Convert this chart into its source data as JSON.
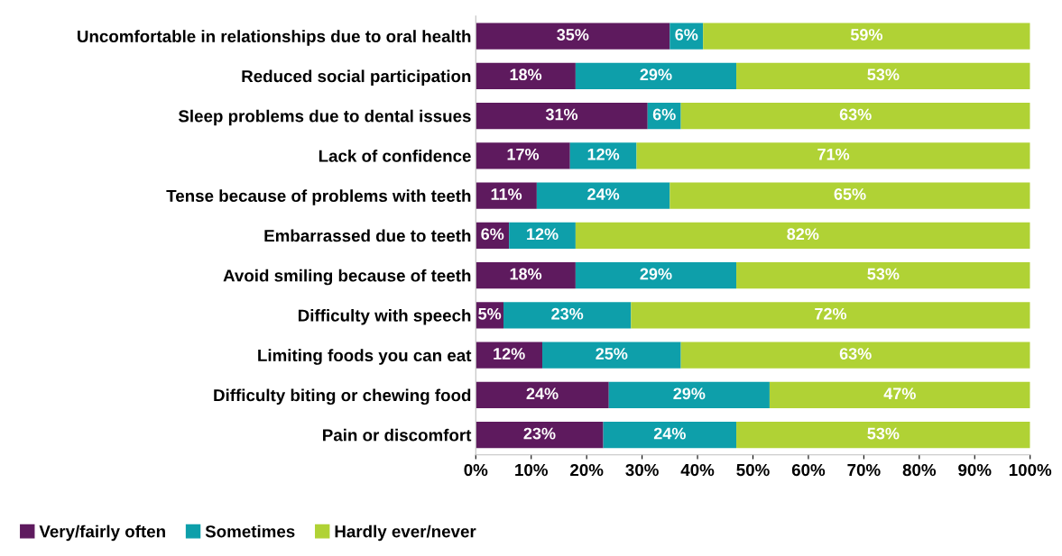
{
  "chart_data": {
    "type": "bar",
    "orientation": "horizontal",
    "stacked": true,
    "grid": false,
    "legend": "bottom",
    "categories": [
      "Uncomfortable in relationships due to oral health",
      "Reduced social participation",
      "Sleep problems due to dental issues",
      "Lack of confidence",
      "Tense because of problems with teeth",
      "Embarrassed due to teeth",
      "Avoid smiling because of teeth",
      "Difficulty with speech",
      "Limiting foods you can eat",
      "Difficulty biting or chewing food",
      "Pain or discomfort"
    ],
    "series": [
      {
        "name": "Very/fairly often",
        "color": "#5e1a5e",
        "values": [
          35,
          18,
          31,
          17,
          11,
          6,
          18,
          5,
          12,
          24,
          23
        ],
        "value_labels": [
          "35%",
          "18%",
          "31%",
          "17%",
          "11%",
          "6%",
          "18%",
          "5%",
          "12%",
          "24%",
          "23%"
        ]
      },
      {
        "name": "Sometimes",
        "color": "#0e9faa",
        "values": [
          6,
          29,
          6,
          12,
          24,
          12,
          29,
          23,
          25,
          29,
          24
        ],
        "value_labels": [
          "6%",
          "29%",
          "6%",
          "12%",
          "24%",
          "12%",
          "29%",
          "23%",
          "25%",
          "29%",
          "24%"
        ]
      },
      {
        "name": "Hardly ever/never",
        "color": "#b0d235",
        "values": [
          59,
          53,
          63,
          71,
          65,
          82,
          53,
          72,
          63,
          47,
          53
        ],
        "value_labels": [
          "59%",
          "53%",
          "63%",
          "71%",
          "65%",
          "82%",
          "53%",
          "72%",
          "63%",
          "47%",
          "53%"
        ]
      }
    ],
    "xlim": [
      0,
      100
    ],
    "xticks": [
      {
        "value": 0,
        "label": "0%"
      },
      {
        "value": 10,
        "label": "10%"
      },
      {
        "value": 20,
        "label": "20%"
      },
      {
        "value": 30,
        "label": "30%"
      },
      {
        "value": 40,
        "label": "40%"
      },
      {
        "value": 50,
        "label": "50%"
      },
      {
        "value": 60,
        "label": "60%"
      },
      {
        "value": 70,
        "label": "70%"
      },
      {
        "value": 80,
        "label": "80%"
      },
      {
        "value": 90,
        "label": "90%"
      },
      {
        "value": 100,
        "label": "100%"
      }
    ]
  }
}
